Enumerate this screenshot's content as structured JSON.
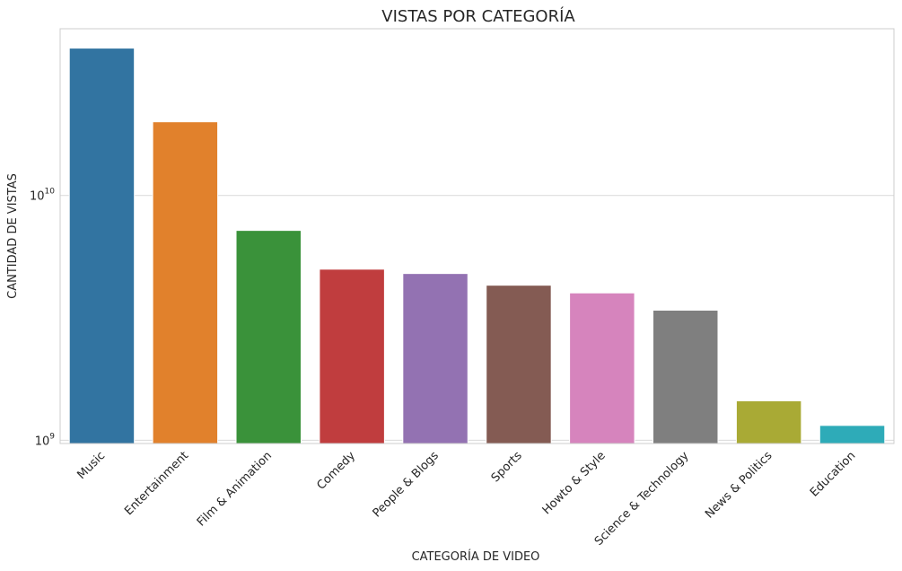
{
  "chart_data": {
    "type": "bar",
    "title": "VISTAS POR CATEGORÍA",
    "xlabel": "CATEGORÍA DE VIDEO",
    "ylabel": "CANTIDAD DE VISTAS",
    "yscale": "log",
    "ylim": [
      970000000,
      48000000000
    ],
    "yticks": [
      {
        "value": 1000000000,
        "base": "10",
        "exp": "9"
      },
      {
        "value": 10000000000,
        "base": "10",
        "exp": "10"
      }
    ],
    "grid": true,
    "categories": [
      "Music",
      "Entertainment",
      "Film & Animation",
      "Comedy",
      "People & Blogs",
      "Sports",
      "Howto & Style",
      "Science & Technology",
      "News & Politics",
      "Education"
    ],
    "values": [
      40000000000,
      20000000000,
      7200000000,
      5000000000,
      4800000000,
      4300000000,
      4000000000,
      3400000000,
      1450000000,
      1150000000
    ],
    "colors": [
      "#3274a1",
      "#e1812c",
      "#3a923a",
      "#c03d3e",
      "#9372b2",
      "#845b53",
      "#d684bd",
      "#7f7f7f",
      "#a9aa35",
      "#2eabb8"
    ]
  }
}
